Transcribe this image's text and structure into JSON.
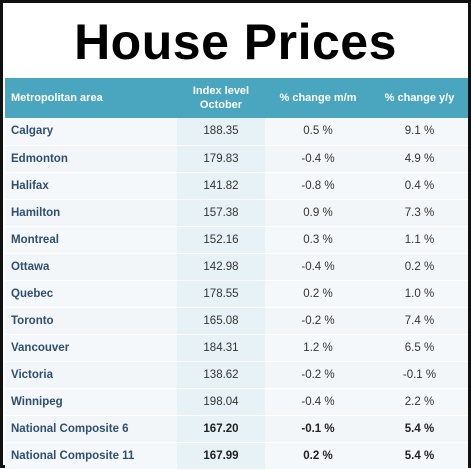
{
  "title": "House Prices",
  "table": {
    "headers": {
      "area": "Metropolitan area",
      "index_line1": "Index level",
      "index_line2": "October",
      "mm": "% change m/m",
      "yy": "% change y/y"
    },
    "rows": [
      {
        "area": "Calgary",
        "index": "188.35",
        "mm": "0.5 %",
        "yy": "9.1 %"
      },
      {
        "area": "Edmonton",
        "index": "179.83",
        "mm": "-0.4 %",
        "yy": "4.9 %"
      },
      {
        "area": "Halifax",
        "index": "141.82",
        "mm": "-0.8 %",
        "yy": "0.4 %"
      },
      {
        "area": "Hamilton",
        "index": "157.38",
        "mm": "0.9 %",
        "yy": "7.3 %"
      },
      {
        "area": "Montreal",
        "index": "152.16",
        "mm": "0.3 %",
        "yy": "1.1 %"
      },
      {
        "area": "Ottawa",
        "index": "142.98",
        "mm": "-0.4 %",
        "yy": "0.2 %"
      },
      {
        "area": "Quebec",
        "index": "178.55",
        "mm": "0.2 %",
        "yy": "1.0 %"
      },
      {
        "area": "Toronto",
        "index": "165.08",
        "mm": "-0.2 %",
        "yy": "7.4 %"
      },
      {
        "area": "Vancouver",
        "index": "184.31",
        "mm": "1.2 %",
        "yy": "6.5 %"
      },
      {
        "area": "Victoria",
        "index": "138.62",
        "mm": "-0.2 %",
        "yy": "-0.1 %"
      },
      {
        "area": "Winnipeg",
        "index": "198.04",
        "mm": "-0.4 %",
        "yy": "2.2 %"
      },
      {
        "area": "National Composite 6",
        "index": "167.20",
        "mm": "-0.1 %",
        "yy": "5.4 %"
      },
      {
        "area": "National Composite 11",
        "index": "167.99",
        "mm": "0.2 %",
        "yy": "5.4 %"
      }
    ]
  },
  "colors": {
    "header_bg": "#4aa5bf",
    "header_text": "#ffffff",
    "area_text": "#2f4f6f",
    "frame": "#111111"
  }
}
